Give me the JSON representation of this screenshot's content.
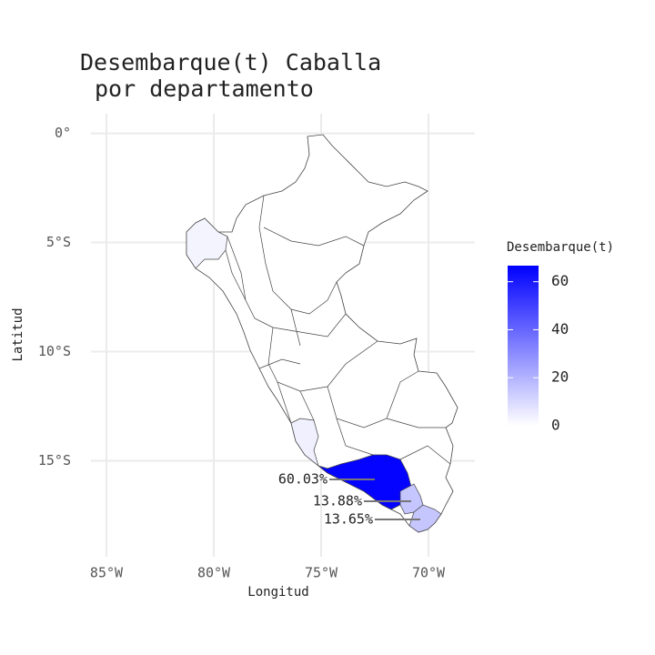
{
  "chart_data": {
    "type": "map",
    "title": [
      "Desembarque(t) Caballa",
      "por departamento"
    ],
    "xlabel": "Longitud",
    "ylabel": "Latitud",
    "xlim": [
      -85.72,
      -67.84
    ],
    "xticks": [
      {
        "value": -85,
        "label": "85°W"
      },
      {
        "value": -80,
        "label": "80°W"
      },
      {
        "value": -75,
        "label": "75°W"
      },
      {
        "value": -70,
        "label": "70°W"
      }
    ],
    "ylim": [
      -19.4,
      0.9
    ],
    "yticks": [
      {
        "value": 0,
        "label": "0°"
      },
      {
        "value": -5,
        "label": "5°S"
      },
      {
        "value": -10,
        "label": "10°S"
      },
      {
        "value": -15,
        "label": "15°S"
      }
    ],
    "grid": true,
    "regions": {
      "values": [
        66,
        15.3,
        15,
        3,
        4
      ]
    },
    "annotations": {
      "values": [
        60.03,
        13.88,
        13.65
      ],
      "value_labels": [
        "60.03%",
        "13.88%",
        "13.65%"
      ]
    },
    "legend": {
      "title": "Desembarque(t)",
      "lim": [
        0,
        66.7
      ],
      "ticks": [
        0,
        20,
        40,
        60
      ],
      "color_low": "#ffffff",
      "color_high": "#0000ff"
    }
  }
}
